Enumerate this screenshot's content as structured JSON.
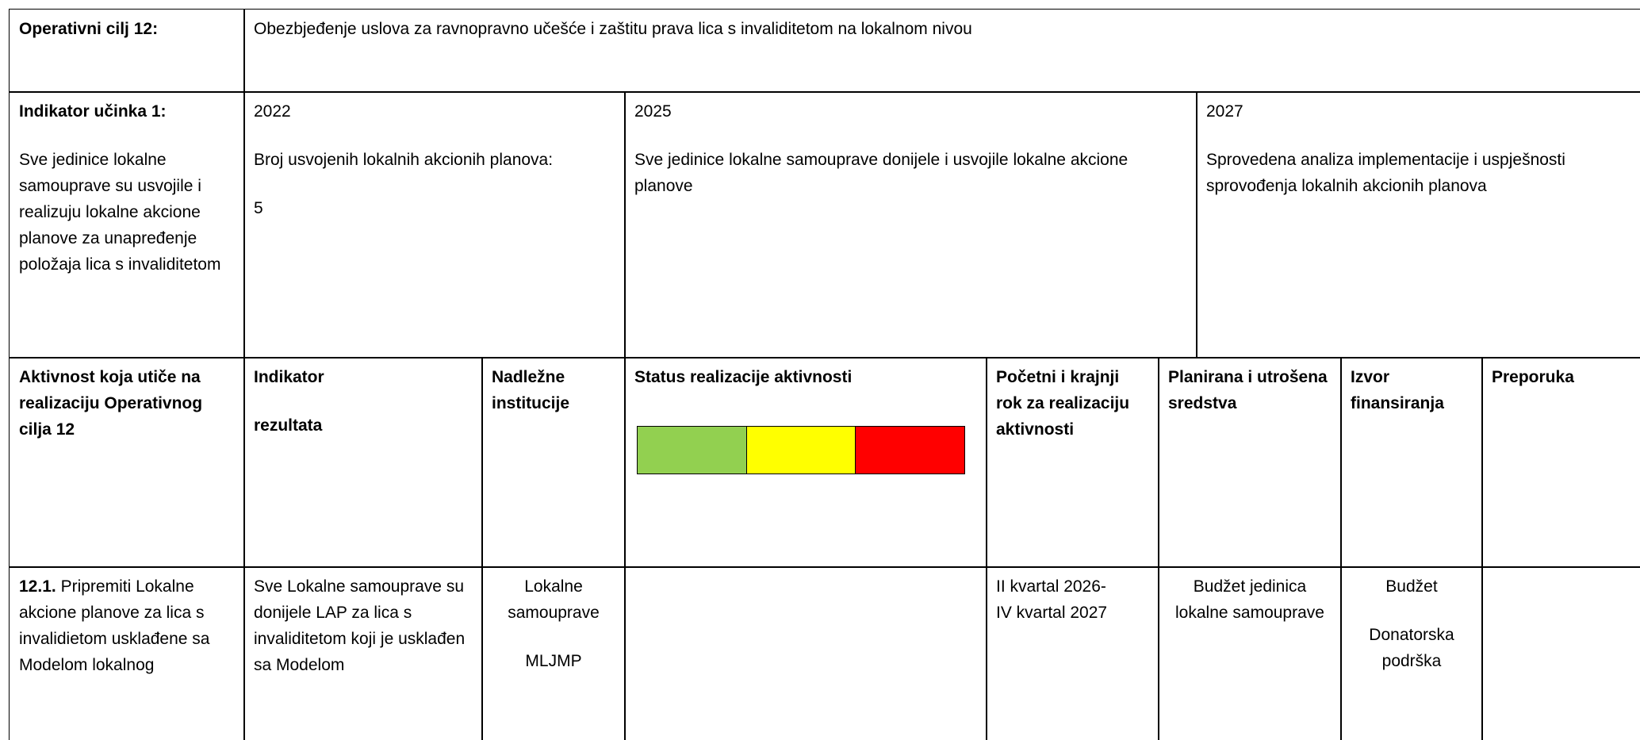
{
  "rows": [
    {
      "cells": [
        {
          "paragraphs": [
            "Operativni cilj 12:"
          ]
        },
        {
          "paragraphs": [
            "Obezbjeđenje uslova za ravnopravno učešće i zaštitu prava lica s invaliditetom na lokalnom nivou"
          ]
        }
      ]
    },
    {
      "cells": [
        {
          "paragraphs": [
            "Indikator učinka 1:",
            "Sve jedinice lokalne samouprave su usvojile i realizuju lokalne akcione planove za unapređenje položaja lica s invaliditetom"
          ]
        },
        {
          "paragraphs": [
            "2022",
            "Broj usvojenih lokalnih akcionih planova:",
            "5"
          ]
        },
        {
          "paragraphs": [
            "2025",
            "Sve jedinice lokalne samouprave donijele i usvojile lokalne akcione planove"
          ]
        },
        {
          "paragraphs": [
            "2027",
            "Sprovedena analiza implementacije i uspješnosti sprovođenja lokalnih akcionih planova"
          ]
        }
      ]
    },
    {
      "cells": [
        {
          "paragraphs": [
            "Aktivnost koja utiče na realizaciju Operativnog cilja 12"
          ]
        },
        {
          "paragraphs": [
            "Indikator",
            "rezultata"
          ]
        },
        {
          "paragraphs": [
            "Nadležne institucije"
          ]
        },
        {
          "paragraphs": [
            "Status realizacije aktivnosti"
          ],
          "status_colors": [
            "#92d050",
            "#ffff00",
            "#ff0000"
          ]
        },
        {
          "paragraphs": [
            "Početni i krajnji rok za realizaciju aktivnosti"
          ]
        },
        {
          "paragraphs": [
            "Planirana i utrošena sredstva"
          ]
        },
        {
          "paragraphs": [
            "Izvor finansiranja"
          ]
        },
        {
          "paragraphs": [
            "Preporuka"
          ]
        }
      ]
    },
    {
      "cells": [
        {
          "number": "12.1.",
          "text": "Pripremiti Lokalne akcione planove za lica s invalidietom usklađene sa Modelom lokalnog"
        },
        {
          "paragraphs": [
            "Sve Lokalne samouprave su donijele LAP za lica s invaliditetom koji je usklađen sa Modelom"
          ]
        },
        {
          "paragraphs": [
            "Lokalne samouprave",
            "MLJMP"
          ]
        },
        {
          "paragraphs": []
        },
        {
          "paragraphs": [
            "II kvartal 2026-",
            "IV kvartal 2027"
          ]
        },
        {
          "paragraphs": [
            "Budžet jedinica lokalne samouprave"
          ]
        },
        {
          "paragraphs": [
            "Budžet",
            "Donatorska podrška"
          ]
        },
        {
          "paragraphs": []
        }
      ]
    }
  ]
}
